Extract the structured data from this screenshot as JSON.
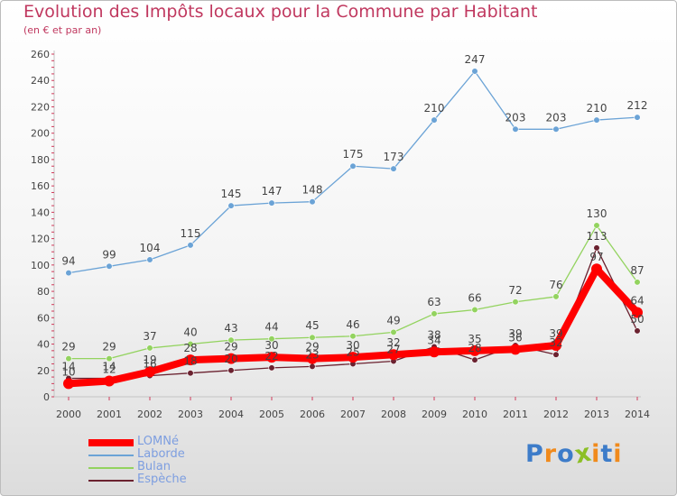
{
  "header": {
    "title": "Evolution des Impôts locaux pour la Commune par Habitant",
    "subtitle": "(en € et par an)"
  },
  "colors": {
    "title": "#c0385f",
    "legend_text": "#7d9ee0",
    "axis": "#c4c4c4",
    "axis_ticks": "#d03a5a",
    "label": "#444444"
  },
  "chart_data": {
    "type": "line",
    "title": "Evolution des Impôts locaux pour la Commune par Habitant",
    "subtitle": "(en € et par an)",
    "xlabel": "",
    "ylabel": "",
    "x": [
      "2000",
      "2001",
      "2002",
      "2003",
      "2004",
      "2005",
      "2006",
      "2007",
      "2008",
      "2009",
      "2010",
      "2011",
      "2012",
      "2013",
      "2014"
    ],
    "ylim": [
      0,
      260
    ],
    "yticks": [
      0,
      20,
      40,
      60,
      80,
      100,
      120,
      140,
      160,
      180,
      200,
      220,
      240,
      260
    ],
    "grid": false,
    "legend_position": "bottom-left",
    "series": [
      {
        "name": "LOMNé",
        "color": "#ff0000",
        "values": [
          10,
          12,
          19,
          28,
          29,
          30,
          29,
          30,
          32,
          34,
          35,
          36,
          39,
          97,
          64
        ],
        "labels": [
          "10",
          "12",
          "19",
          "28",
          "29",
          "30",
          "29",
          "30",
          "32",
          "34",
          "35",
          "36",
          "39",
          "97",
          "64"
        ]
      },
      {
        "name": "Laborde",
        "color": "#6ba3d6",
        "values": [
          94,
          99,
          104,
          115,
          145,
          147,
          148,
          175,
          173,
          210,
          247,
          203,
          203,
          210,
          212
        ],
        "labels": [
          "94",
          "99",
          "104",
          "115",
          "145",
          "147",
          "148",
          "175",
          "173",
          "210",
          "247",
          "203",
          "203",
          "210",
          "212"
        ]
      },
      {
        "name": "Bulan",
        "color": "#93d35f",
        "values": [
          29,
          29,
          37,
          40,
          43,
          44,
          45,
          46,
          49,
          63,
          66,
          72,
          76,
          130,
          87
        ],
        "labels": [
          "29",
          "29",
          "37",
          "40",
          "43",
          "44",
          "45",
          "46",
          "49",
          "63",
          "66",
          "72",
          "76",
          "130",
          "87"
        ]
      },
      {
        "name": "Espèche",
        "color": "#6b2230",
        "values": [
          14,
          14,
          16,
          18,
          20,
          22,
          23,
          25,
          27,
          38,
          28,
          39,
          32,
          113,
          50
        ],
        "labels": [
          "14",
          "14",
          "16",
          "18",
          "20",
          "22",
          "23",
          "25",
          "27",
          "38",
          "28",
          "39",
          "32",
          "113",
          "50"
        ]
      }
    ]
  },
  "legend": {
    "items": [
      {
        "label": "LOMNé",
        "color": "#ff0000"
      },
      {
        "label": "Laborde",
        "color": "#6ba3d6"
      },
      {
        "label": "Bulan",
        "color": "#93d35f"
      },
      {
        "label": "Espèche",
        "color": "#6b2230"
      }
    ]
  },
  "logo": {
    "text": "Proxiti",
    "letters": [
      "P",
      "r",
      "o",
      "x",
      "i",
      "t",
      "i"
    ],
    "letter_colors": [
      "#3d7cc9",
      "#f08a1c",
      "#3d7cc9",
      "#8cbf26",
      "#f08a1c",
      "#3d7cc9",
      "#f08a1c"
    ]
  }
}
